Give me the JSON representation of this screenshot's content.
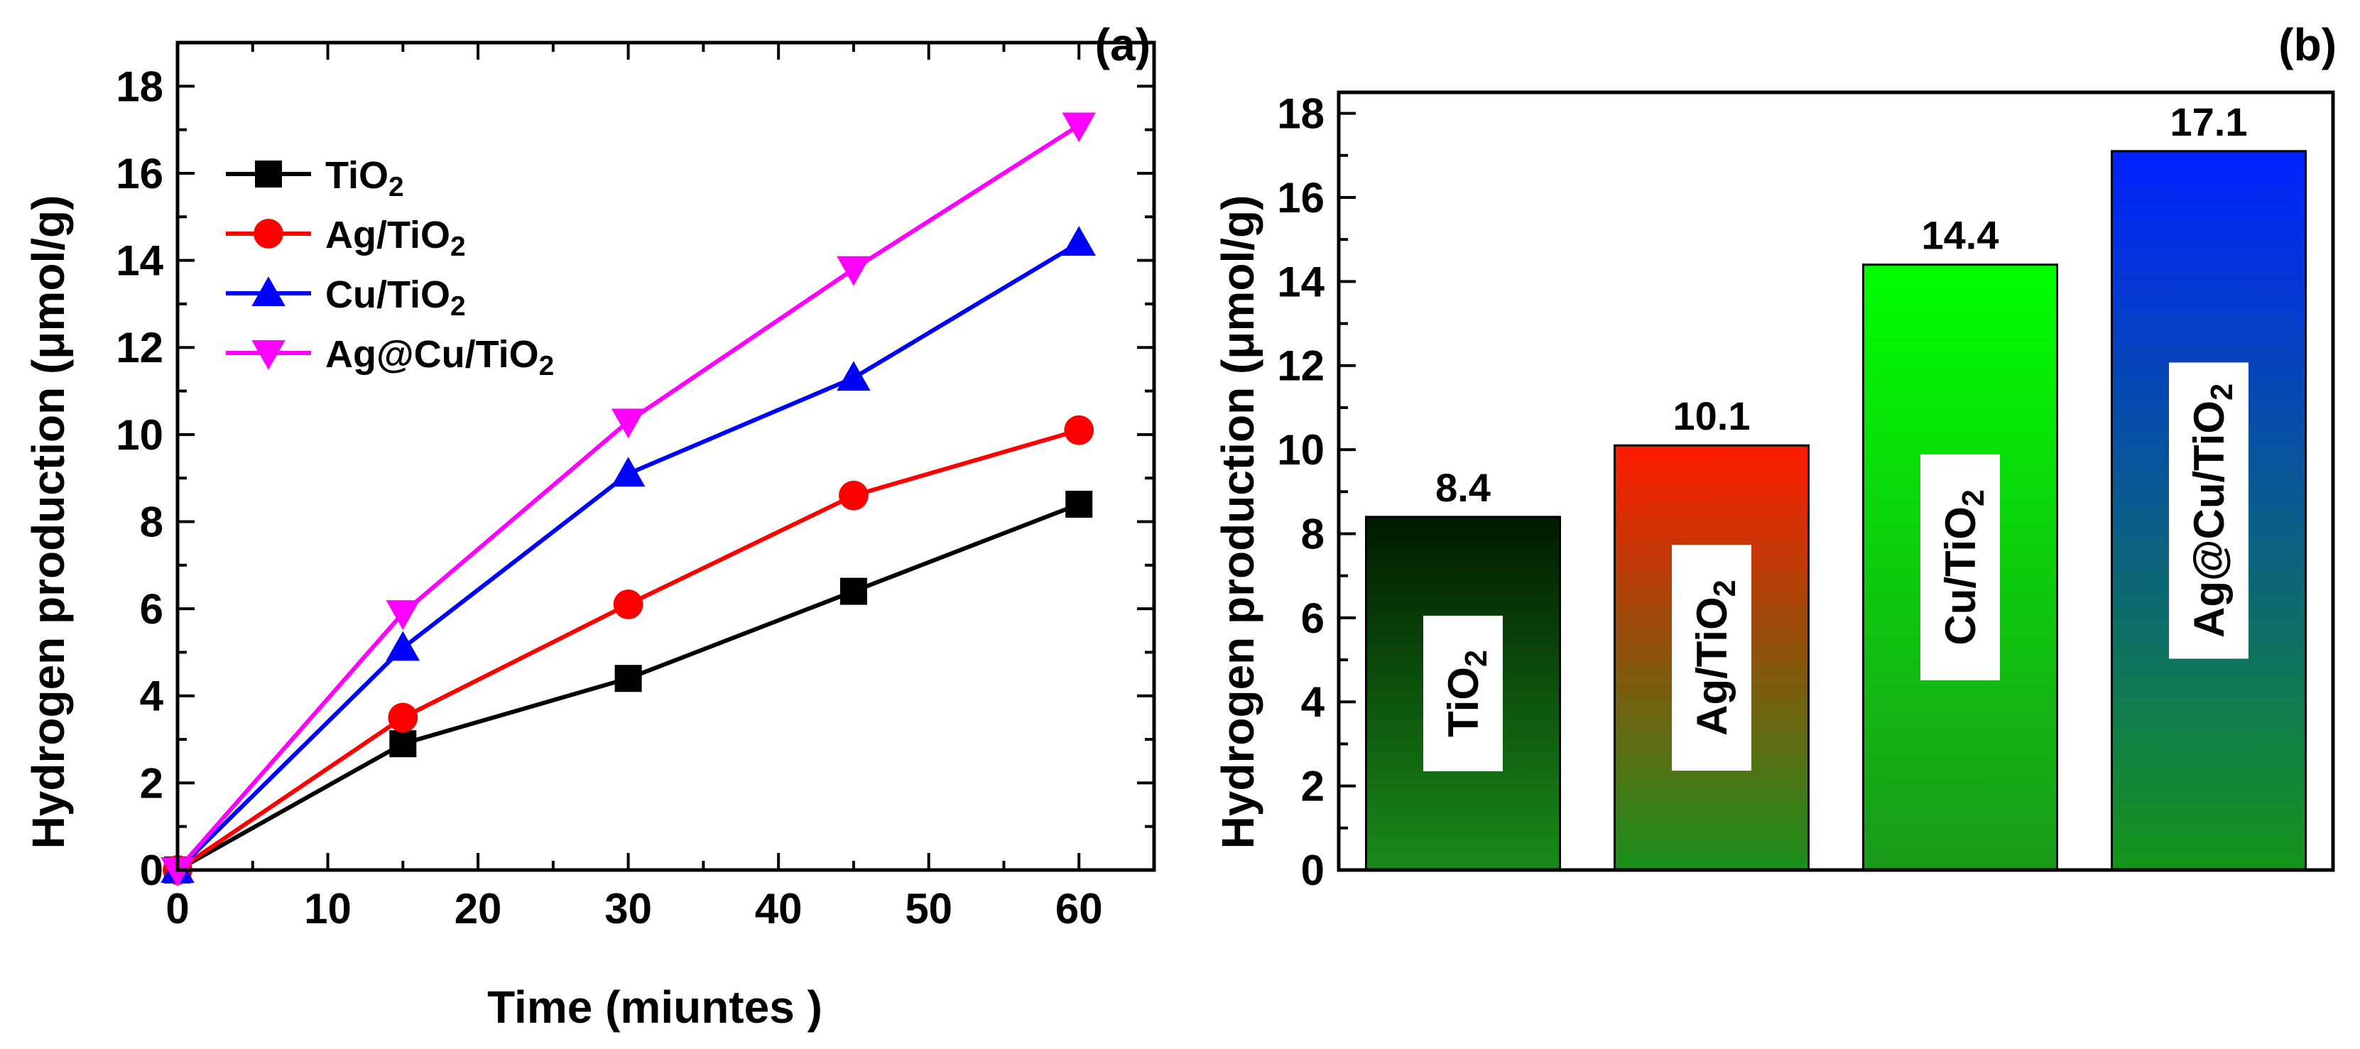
{
  "chart_data": [
    {
      "type": "line",
      "panel_label": "(a)",
      "xlabel": "Time (miuntes )",
      "ylabel": "Hydrogen production (μmol/g)",
      "xlim": [
        0,
        65
      ],
      "ylim": [
        0,
        19
      ],
      "xticks": [
        0,
        10,
        20,
        30,
        40,
        50,
        60
      ],
      "yticks": [
        0,
        2,
        4,
        6,
        8,
        10,
        12,
        14,
        16,
        18
      ],
      "legend_position": "top-left",
      "grid": false,
      "x": [
        0,
        15,
        30,
        45,
        60
      ],
      "series": [
        {
          "name": "TiO2",
          "name_main": "TiO",
          "name_sub": "2",
          "color": "#000000",
          "marker": "square",
          "values": [
            0,
            2.9,
            4.4,
            6.4,
            8.4
          ]
        },
        {
          "name": "Ag/TiO2",
          "name_main": "Ag/TiO",
          "name_sub": "2",
          "color": "#ff0000",
          "marker": "circle",
          "values": [
            0,
            3.5,
            6.1,
            8.6,
            10.1
          ]
        },
        {
          "name": "Cu/TiO2",
          "name_main": "Cu/TiO",
          "name_sub": "2",
          "color": "#0000ff",
          "marker": "triangle-up",
          "values": [
            0,
            5.1,
            9.1,
            11.3,
            14.4
          ]
        },
        {
          "name": "Ag@Cu/TiO2",
          "name_main": "Ag@Cu/TiO",
          "name_sub": "2",
          "color": "#ff00ff",
          "marker": "triangle-down",
          "values": [
            0,
            5.9,
            10.3,
            13.8,
            17.1
          ]
        }
      ]
    },
    {
      "type": "bar",
      "panel_label": "(b)",
      "xlabel": "",
      "ylabel": "Hydrogen production (μmol/g)",
      "ylim": [
        0,
        18.5
      ],
      "yticks": [
        0,
        2,
        4,
        6,
        8,
        10,
        12,
        14,
        16,
        18
      ],
      "grid": false,
      "categories": [
        "TiO2",
        "Ag/TiO2",
        "Cu/TiO2",
        "Ag@Cu/TiO2"
      ],
      "values": [
        8.4,
        10.1,
        14.4,
        17.1
      ],
      "data_labels": [
        "8.4",
        "10.1",
        "14.4",
        "17.1"
      ],
      "bars": [
        {
          "name_main": "TiO",
          "name_sub": "2",
          "top_color": "#001a00",
          "bottom_color": "#1a8a1a"
        },
        {
          "name_main": "Ag/TiO",
          "name_sub": "2",
          "top_color": "#ff1a00",
          "bottom_color": "#18901c"
        },
        {
          "name_main": "Cu/TiO",
          "name_sub": "2",
          "top_color": "#00ff00",
          "bottom_color": "#1a9a1a"
        },
        {
          "name_main": "Ag@Cu/TiO",
          "name_sub": "2",
          "top_color": "#0022ff",
          "bottom_color": "#15951a"
        }
      ]
    }
  ]
}
